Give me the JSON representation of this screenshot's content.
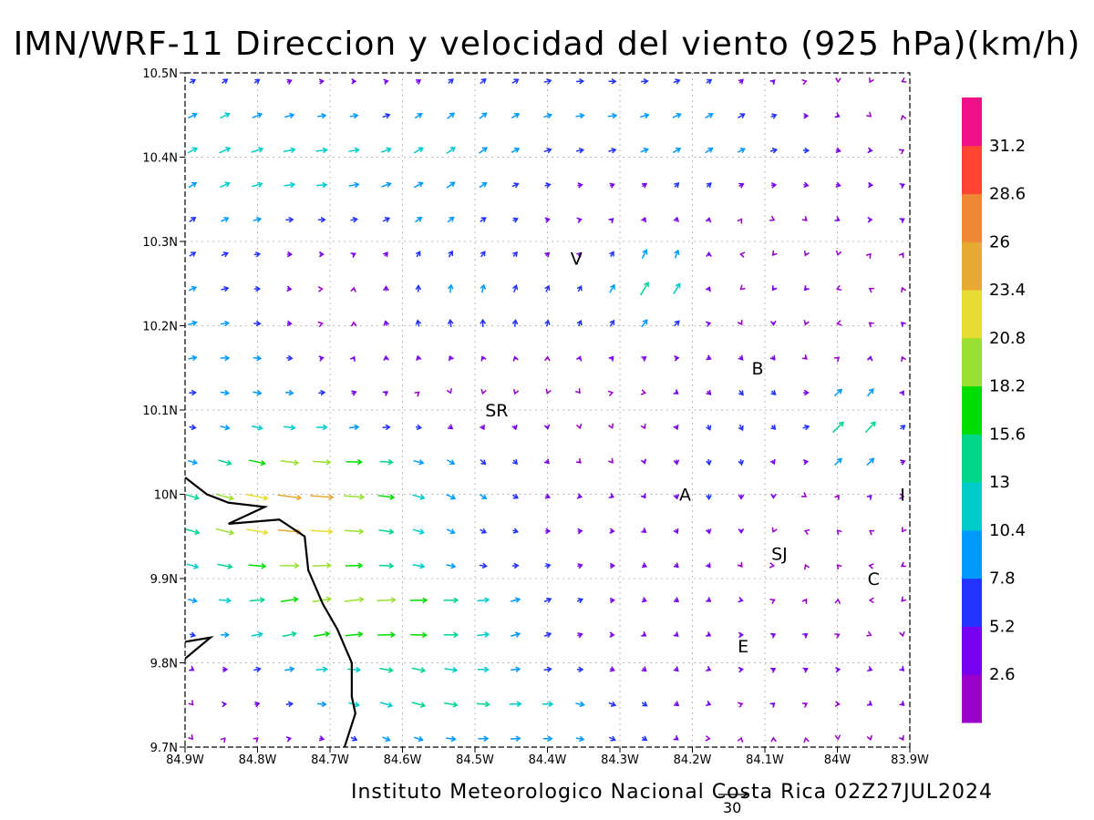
{
  "title": "IMN/WRF-11 Direccion y velocidad del viento (925 hPa)(km/h)",
  "footer": "Instituto Meteorologico Nacional Costa Rica 02Z27JUL2024",
  "reference_vector": {
    "label": "30",
    "value": 30,
    "units": "km/h"
  },
  "axes": {
    "lon_range": [
      -84.9,
      -83.9
    ],
    "lat_range": [
      9.7,
      10.5
    ],
    "x_ticks": [
      {
        "value": -84.9,
        "label": "84.9W"
      },
      {
        "value": -84.8,
        "label": "84.8W"
      },
      {
        "value": -84.7,
        "label": "84.7W"
      },
      {
        "value": -84.6,
        "label": "84.6W"
      },
      {
        "value": -84.5,
        "label": "84.5W"
      },
      {
        "value": -84.4,
        "label": "84.4W"
      },
      {
        "value": -84.3,
        "label": "84.3W"
      },
      {
        "value": -84.2,
        "label": "84.2W"
      },
      {
        "value": -84.1,
        "label": "84.1W"
      },
      {
        "value": -84.0,
        "label": "84W"
      },
      {
        "value": -83.9,
        "label": "83.9W"
      }
    ],
    "y_ticks": [
      {
        "value": 9.7,
        "label": "9.7N"
      },
      {
        "value": 9.8,
        "label": "9.8N"
      },
      {
        "value": 9.9,
        "label": "9.9N"
      },
      {
        "value": 10.0,
        "label": "10N"
      },
      {
        "value": 10.1,
        "label": "10.1N"
      },
      {
        "value": 10.2,
        "label": "10.2N"
      },
      {
        "value": 10.3,
        "label": "10.3N"
      },
      {
        "value": 10.4,
        "label": "10.4N"
      },
      {
        "value": 10.5,
        "label": "10.5N"
      }
    ],
    "grid": true
  },
  "colorbar": {
    "colors": [
      "#9900cc",
      "#7700ee",
      "#2233ff",
      "#0099ff",
      "#00cccc",
      "#00d68a",
      "#00dd00",
      "#99e033",
      "#e6dc33",
      "#e6aa33",
      "#ee8833",
      "#ff4433",
      "#ee1188"
    ],
    "labels": [
      "2.6",
      "5.2",
      "7.8",
      "10.4",
      "13",
      "15.6",
      "18.2",
      "20.8",
      "23.4",
      "26",
      "28.6",
      "31.2"
    ]
  },
  "cities": [
    {
      "label": "V",
      "lon": -84.36,
      "lat": 10.28
    },
    {
      "label": "B",
      "lon": -84.11,
      "lat": 10.15
    },
    {
      "label": "SR",
      "lon": -84.47,
      "lat": 10.1
    },
    {
      "label": "A",
      "lon": -84.21,
      "lat": 10.0
    },
    {
      "label": "I",
      "lon": -83.91,
      "lat": 10.0
    },
    {
      "label": "SJ",
      "lon": -84.08,
      "lat": 9.93
    },
    {
      "label": "C",
      "lon": -83.95,
      "lat": 9.9
    },
    {
      "label": "E",
      "lon": -84.13,
      "lat": 9.82
    }
  ],
  "coastline": [
    [
      -84.9,
      10.02
    ],
    [
      -84.87,
      10.0
    ],
    [
      -84.84,
      9.99
    ],
    [
      -84.79,
      9.985
    ],
    [
      -84.84,
      9.965
    ],
    [
      -84.77,
      9.97
    ],
    [
      -84.735,
      9.95
    ],
    [
      -84.73,
      9.91
    ],
    [
      -84.71,
      9.87
    ],
    [
      -84.69,
      9.84
    ],
    [
      -84.67,
      9.8
    ],
    [
      -84.67,
      9.76
    ],
    [
      -84.665,
      9.74
    ],
    [
      -84.68,
      9.7
    ]
  ],
  "peninsula": [
    [
      -84.9,
      9.825
    ],
    [
      -84.865,
      9.83
    ],
    [
      -84.9,
      9.805
    ]
  ]
}
